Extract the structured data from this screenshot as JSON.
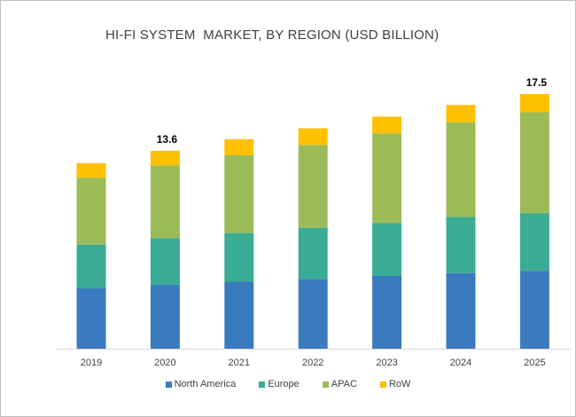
{
  "chart_data": {
    "type": "bar",
    "stacked": true,
    "title": "HI-FI SYSTEM  MARKET, BY REGION (USD BILLION)",
    "xlabel": "",
    "ylabel": "",
    "ylim": [
      0,
      20
    ],
    "grid": false,
    "legend_position": "bottom",
    "categories": [
      "2019",
      "2020",
      "2021",
      "2022",
      "2023",
      "2024",
      "2025"
    ],
    "series": [
      {
        "name": "North America",
        "color": "#3a7abf",
        "values": [
          4.15,
          4.4,
          4.6,
          4.8,
          5.0,
          5.2,
          5.35
        ]
      },
      {
        "name": "Europe",
        "color": "#3aab94",
        "values": [
          3.0,
          3.2,
          3.35,
          3.5,
          3.65,
          3.85,
          3.95
        ]
      },
      {
        "name": "APAC",
        "color": "#9bbb59",
        "values": [
          4.6,
          5.0,
          5.35,
          5.7,
          6.15,
          6.5,
          6.95
        ]
      },
      {
        "name": "RoW",
        "color": "#ffc000",
        "values": [
          1.0,
          1.0,
          1.1,
          1.15,
          1.15,
          1.2,
          1.25
        ]
      }
    ],
    "annotations": [
      {
        "category": "2020",
        "text": "13.6"
      },
      {
        "category": "2025",
        "text": "17.5"
      }
    ]
  }
}
